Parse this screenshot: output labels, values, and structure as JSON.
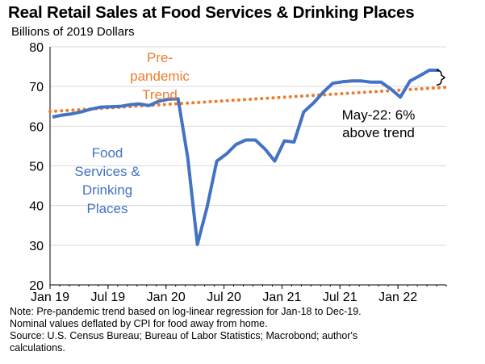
{
  "chart_data": {
    "type": "line",
    "title": "Real Retail Sales at Food Services & Drinking Places",
    "ylabel": "Billions of 2019 Dollars",
    "xlabel": "",
    "ylim": [
      20,
      80
    ],
    "yticks": [
      20,
      30,
      40,
      50,
      60,
      70,
      80
    ],
    "x_tick_labels": [
      "Jan 19",
      "Jul 19",
      "Jan 20",
      "Jul 20",
      "Jan 21",
      "Jul 21",
      "Jan 22"
    ],
    "x_tick_index": [
      0,
      6,
      12,
      18,
      24,
      30,
      36
    ],
    "gridlines": true,
    "series": [
      {
        "name": "Food Services & Drinking Places",
        "label_lines": [
          "Food",
          "Services &",
          "Drinking",
          "Places"
        ],
        "color": "#4472C4",
        "style": "solid",
        "x": [
          "Jan-19",
          "Feb-19",
          "Mar-19",
          "Apr-19",
          "May-19",
          "Jun-19",
          "Jul-19",
          "Aug-19",
          "Sep-19",
          "Oct-19",
          "Nov-19",
          "Dec-19",
          "Jan-20",
          "Feb-20",
          "Mar-20",
          "Apr-20",
          "May-20",
          "Jun-20",
          "Jul-20",
          "Aug-20",
          "Sep-20",
          "Oct-20",
          "Nov-20",
          "Dec-20",
          "Jan-21",
          "Feb-21",
          "Mar-21",
          "Apr-21",
          "May-21",
          "Jun-21",
          "Jul-21",
          "Aug-21",
          "Sep-21",
          "Oct-21",
          "Nov-21",
          "Dec-21",
          "Jan-22",
          "Feb-22",
          "Mar-22",
          "Apr-22",
          "May-22"
        ],
        "values": [
          62.3,
          62.8,
          63.1,
          63.6,
          64.3,
          64.8,
          64.9,
          65.0,
          65.4,
          65.6,
          65.2,
          66.3,
          66.8,
          66.9,
          52.0,
          30.2,
          39.6,
          51.2,
          53.0,
          55.4,
          56.5,
          56.5,
          54.2,
          51.2,
          56.3,
          56.0,
          63.6,
          65.8,
          68.5,
          70.8,
          71.2,
          71.4,
          71.4,
          71.1,
          71.1,
          69.4,
          67.3,
          71.4,
          72.7,
          74.1,
          74.1
        ]
      },
      {
        "name": "Pre-pandemic Trend",
        "label_lines": [
          "Pre-",
          "pandemic",
          "Trend"
        ],
        "color": "#ED7D31",
        "style": "dotted",
        "start": 63.7,
        "end": 69.8
      }
    ],
    "annotations": [
      {
        "text_lines": [
          "May-22: 6%",
          "above trend"
        ],
        "target": "May-22"
      }
    ]
  },
  "notes": [
    "Note: Pre-pandemic trend based on log-linear regression for Jan-18 to Dec-19.",
    "Nominal values deflated by CPI for food away from home.",
    "Source: U.S. Census Bureau; Bureau of Labor Statistics; Macrobond; author's",
    "calculations."
  ]
}
